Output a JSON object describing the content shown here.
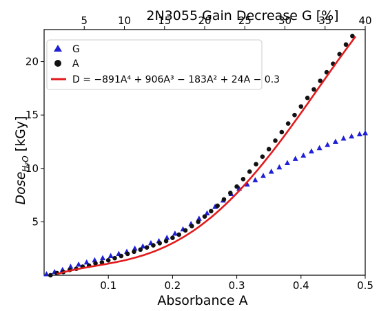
{
  "chart_data": {
    "type": "scatter",
    "title": "2N3055 Gain Decrease G [%]",
    "xlabel": "Absorbance A",
    "ylabel_main": "Dose",
    "ylabel_sub": "H₂O",
    "ylabel_unit": "[kGy]",
    "x_bottom": {
      "lim": [
        0.0,
        0.5
      ],
      "ticks": [
        0.1,
        0.2,
        0.3,
        0.4,
        0.5
      ],
      "tick_labels": [
        "0.1",
        "0.2",
        "0.3",
        "0.4",
        "0.5"
      ]
    },
    "x_top": {
      "lim": [
        0,
        40
      ],
      "ticks": [
        5,
        10,
        15,
        20,
        25,
        30,
        35,
        40
      ],
      "tick_labels": [
        "5",
        "10",
        "15",
        "20",
        "25",
        "30",
        "35",
        "40"
      ]
    },
    "y": {
      "lim": [
        0,
        23
      ],
      "ticks": [
        5,
        10,
        15,
        20
      ],
      "tick_labels": [
        "5",
        "10",
        "15",
        "20"
      ]
    },
    "legend": {
      "position": "top-left",
      "entries": [
        {
          "label": "G",
          "marker": "triangle",
          "color": "#1f1fd6"
        },
        {
          "label": "A",
          "marker": "circle",
          "color": "#111111"
        },
        {
          "label": "D = −891A⁴ + 906A³ − 183A² + 24A − 0.3",
          "marker": "line",
          "color": "#e31a1c"
        }
      ]
    },
    "series": [
      {
        "name": "G",
        "axis": "top",
        "color": "#1f1fd6",
        "x": [
          0.3,
          1.3,
          2.3,
          3.3,
          4.3,
          5.3,
          6.3,
          7.3,
          8.3,
          9.3,
          10.3,
          11.3,
          12.3,
          13.3,
          14.3,
          15.3,
          16.3,
          17.3,
          18.3,
          19.3,
          20.3,
          21.3,
          22.3,
          23.3,
          24.3,
          25.3,
          26.3,
          27.3,
          28.3,
          29.3,
          30.3,
          31.3,
          32.3,
          33.3,
          34.3,
          35.3,
          36.3,
          37.3,
          38.3,
          39.3,
          40.0
        ],
        "y": [
          0.1,
          0.3,
          0.5,
          0.8,
          1.0,
          1.2,
          1.4,
          1.6,
          1.8,
          2.0,
          2.2,
          2.5,
          2.7,
          3.0,
          3.2,
          3.5,
          3.9,
          4.3,
          4.8,
          5.3,
          5.8,
          6.4,
          7.0,
          7.6,
          8.1,
          8.5,
          8.9,
          9.3,
          9.7,
          10.1,
          10.5,
          10.9,
          11.2,
          11.6,
          11.9,
          12.2,
          12.5,
          12.8,
          13.0,
          13.2,
          13.3
        ]
      },
      {
        "name": "A",
        "axis": "bottom",
        "color": "#111111",
        "x": [
          0.01,
          0.02,
          0.03,
          0.04,
          0.05,
          0.06,
          0.07,
          0.08,
          0.09,
          0.1,
          0.11,
          0.12,
          0.13,
          0.14,
          0.15,
          0.16,
          0.17,
          0.18,
          0.19,
          0.2,
          0.21,
          0.22,
          0.23,
          0.24,
          0.25,
          0.26,
          0.27,
          0.28,
          0.29,
          0.3,
          0.31,
          0.32,
          0.33,
          0.34,
          0.35,
          0.36,
          0.37,
          0.38,
          0.39,
          0.4,
          0.41,
          0.42,
          0.43,
          0.44,
          0.45,
          0.46,
          0.47,
          0.48
        ],
        "y": [
          0.0,
          0.2,
          0.3,
          0.5,
          0.6,
          0.8,
          0.9,
          1.1,
          1.2,
          1.4,
          1.6,
          1.8,
          2.0,
          2.2,
          2.4,
          2.6,
          2.8,
          3.0,
          3.2,
          3.5,
          3.8,
          4.2,
          4.6,
          5.0,
          5.5,
          6.0,
          6.5,
          7.1,
          7.7,
          8.3,
          9.0,
          9.7,
          10.4,
          11.1,
          11.8,
          12.6,
          13.4,
          14.2,
          15.0,
          15.8,
          16.6,
          17.4,
          18.2,
          19.0,
          19.8,
          20.7,
          21.6,
          22.4
        ]
      }
    ],
    "fit": {
      "name": "D = −891A⁴ + 906A³ − 183A² + 24A − 0.3",
      "coefficients": [
        -891,
        906,
        -183,
        24,
        -0.3
      ],
      "x_range": [
        0.02,
        0.485
      ],
      "color": "#e31a1c"
    }
  }
}
